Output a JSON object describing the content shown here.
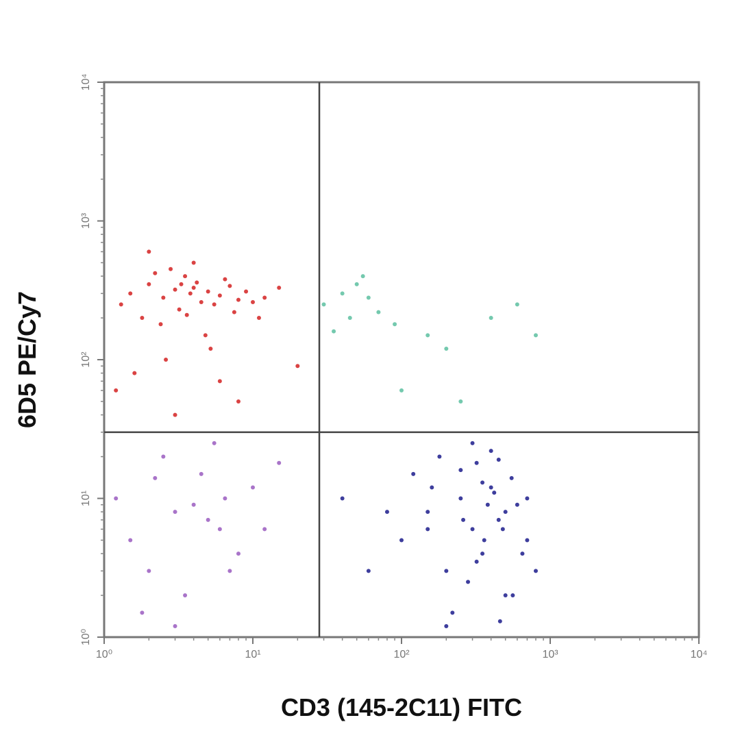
{
  "chart_data": {
    "type": "scatter",
    "x_label": "CD3 (145-2C11) FITC",
    "y_label": "6D5 PE/Cy7",
    "log_x": true,
    "log_y": true,
    "xlim": [
      1,
      10000
    ],
    "ylim": [
      1,
      10000
    ],
    "xticks": [
      {
        "value": 1,
        "label": "10⁰"
      },
      {
        "value": 10,
        "label": "10¹"
      },
      {
        "value": 100,
        "label": "10²"
      },
      {
        "value": 1000,
        "label": "10³"
      },
      {
        "value": 10000,
        "label": "10⁴"
      }
    ],
    "yticks": [
      {
        "value": 1,
        "label": "10⁰"
      },
      {
        "value": 10,
        "label": "10¹"
      },
      {
        "value": 100,
        "label": "10²"
      },
      {
        "value": 1000,
        "label": "10³"
      },
      {
        "value": 10000,
        "label": "10⁴"
      }
    ],
    "gates": {
      "x": 28,
      "y": 30
    },
    "series": [
      {
        "color": "#d42222",
        "x": [
          1.5,
          2,
          2.5,
          3,
          3.5,
          4,
          4.5,
          5,
          6,
          7,
          8,
          2.2,
          3.2,
          4.2,
          5.5,
          6.5,
          1.8,
          2.8,
          3.8,
          9,
          12,
          15,
          1.3,
          2.4,
          3.6,
          4.8,
          7.5,
          10,
          2.6,
          5.2,
          1.2,
          1.6,
          3,
          6,
          20,
          4,
          2,
          8,
          11,
          3.3
        ],
        "values": [
          300,
          350,
          280,
          320,
          400,
          330,
          260,
          310,
          290,
          340,
          270,
          420,
          230,
          360,
          250,
          380,
          200,
          450,
          300,
          310,
          280,
          330,
          250,
          180,
          210,
          150,
          220,
          260,
          100,
          120,
          60,
          80,
          40,
          70,
          90,
          500,
          600,
          50,
          200,
          350
        ]
      },
      {
        "color": "#9a5cc0",
        "x": [
          1.2,
          1.5,
          2,
          3,
          4,
          5,
          6,
          8,
          10,
          3.5,
          4.5,
          2.5,
          7,
          1.8,
          12,
          15,
          5.5,
          3,
          2.2,
          6.5
        ],
        "values": [
          10,
          5,
          3,
          8,
          9,
          7,
          6,
          4,
          12,
          2,
          15,
          20,
          3,
          1.5,
          6,
          18,
          25,
          1.2,
          14,
          10
        ]
      },
      {
        "color": "#1c1c8c",
        "x": [
          100,
          150,
          200,
          250,
          300,
          350,
          400,
          450,
          500,
          600,
          700,
          800,
          120,
          180,
          220,
          280,
          320,
          380,
          420,
          480,
          550,
          650,
          80,
          60,
          40,
          160,
          260,
          360,
          460,
          560,
          300,
          400,
          250,
          350,
          500,
          200,
          150,
          700,
          450,
          320
        ],
        "values": [
          5,
          8,
          3,
          10,
          6,
          4,
          12,
          7,
          2,
          9,
          5,
          3,
          15,
          20,
          1.5,
          2.5,
          18,
          9,
          11,
          6,
          14,
          4,
          8,
          3,
          10,
          12,
          7,
          5,
          1.3,
          2,
          25,
          22,
          16,
          13,
          8,
          1.2,
          6,
          10,
          19,
          3.5
        ]
      },
      {
        "color": "#5cc0a0",
        "x": [
          30,
          40,
          50,
          60,
          45,
          70,
          90,
          150,
          200,
          400,
          600,
          800,
          100,
          55,
          35,
          250
        ],
        "values": [
          250,
          300,
          350,
          280,
          200,
          220,
          180,
          150,
          120,
          200,
          250,
          150,
          60,
          400,
          160,
          50
        ]
      }
    ]
  }
}
